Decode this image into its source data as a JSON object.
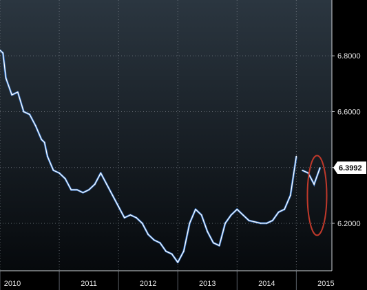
{
  "chart_data": {
    "type": "line",
    "y_axis_side": "right",
    "ylim": [
      6.03,
      7.0
    ],
    "y_ticks": [
      6.2,
      6.4,
      6.6,
      6.8
    ],
    "y_tick_labels": [
      "6.2000",
      "6.6000",
      "6.8000"
    ],
    "x_labels": [
      "2010",
      "2011",
      "2012",
      "2013",
      "2014",
      "2015"
    ],
    "xlim": [
      2010.0,
      2015.6
    ],
    "grid": true,
    "colors": {
      "background_top": "#2b3640",
      "background_bottom": "#06090c",
      "line": "#ffffff",
      "line_shadow": "#3d7fd6",
      "highlight": "#c0392b"
    },
    "last_value_label": "6.3992",
    "series": [
      {
        "x": [
          2010.0,
          2010.05,
          2010.1,
          2010.2,
          2010.3,
          2010.4,
          2010.5,
          2010.6,
          2010.7,
          2010.75,
          2010.8,
          2010.9,
          2011.0,
          2011.1,
          2011.2,
          2011.3,
          2011.4,
          2011.5,
          2011.6,
          2011.7,
          2011.8,
          2011.9,
          2012.0,
          2012.1,
          2012.2,
          2012.3,
          2012.4,
          2012.5,
          2012.6,
          2012.7,
          2012.8,
          2012.9,
          2013.0,
          2013.1,
          2013.2,
          2013.3,
          2013.4,
          2013.5,
          2013.6,
          2013.7,
          2013.8,
          2013.9,
          2014.0,
          2014.1,
          2014.2,
          2014.3,
          2014.4,
          2014.5,
          2014.6,
          2014.7,
          2014.8,
          2014.9,
          2015.0,
          2015.1,
          2015.2,
          2015.3,
          2015.4
        ],
        "y": [
          6.82,
          6.81,
          6.72,
          6.66,
          6.67,
          6.6,
          6.59,
          6.55,
          6.5,
          6.49,
          6.44,
          6.39,
          6.38,
          6.36,
          6.32,
          6.32,
          6.31,
          6.32,
          6.34,
          6.38,
          6.34,
          6.3,
          6.26,
          6.22,
          6.23,
          6.22,
          6.2,
          6.16,
          6.14,
          6.13,
          6.1,
          6.09,
          6.06,
          6.1,
          6.2,
          6.25,
          6.23,
          6.17,
          6.13,
          6.12,
          6.2,
          6.23,
          6.25,
          6.23,
          6.21,
          6.205,
          6.2,
          6.2,
          6.21,
          6.24,
          6.25,
          6.3,
          6.44,
          6.39,
          6.38,
          6.34,
          6.3992
        ]
      }
    ]
  }
}
